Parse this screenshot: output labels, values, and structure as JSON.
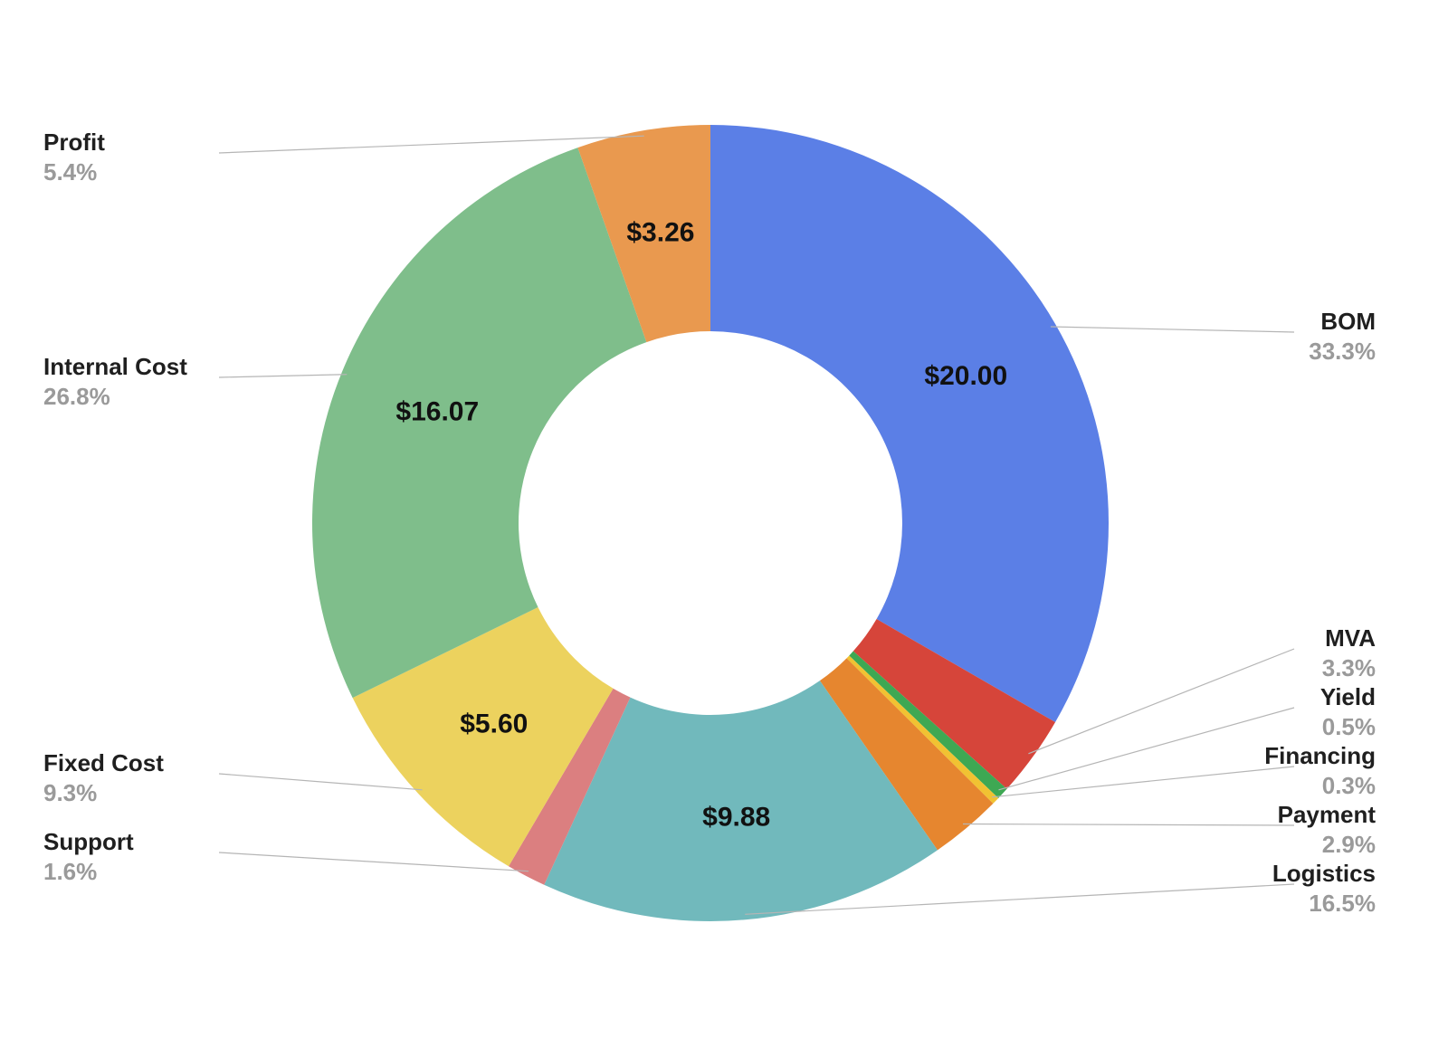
{
  "chart_data": {
    "type": "pie",
    "variant": "donut",
    "title": "",
    "legend_position": "callout-labels",
    "background_color": "#ffffff",
    "label_color": "#1f1f1f",
    "percent_label_color": "#9a9a9a",
    "segments": [
      {
        "label": "BOM",
        "percent": 33.3,
        "percent_label": "33.3%",
        "value_label": "$20.00",
        "color": "#5b7fe6"
      },
      {
        "label": "MVA",
        "percent": 3.3,
        "percent_label": "3.3%",
        "value_label": null,
        "color": "#d6453a"
      },
      {
        "label": "Yield",
        "percent": 0.5,
        "percent_label": "0.5%",
        "value_label": null,
        "color": "#3ea853"
      },
      {
        "label": "Financing",
        "percent": 0.3,
        "percent_label": "0.3%",
        "value_label": null,
        "color": "#f1c232"
      },
      {
        "label": "Payment",
        "percent": 2.9,
        "percent_label": "2.9%",
        "value_label": null,
        "color": "#e6862f"
      },
      {
        "label": "Logistics",
        "percent": 16.5,
        "percent_label": "16.5%",
        "value_label": "$9.88",
        "color": "#71b9bc"
      },
      {
        "label": "Support",
        "percent": 1.6,
        "percent_label": "1.6%",
        "value_label": null,
        "color": "#db7f80"
      },
      {
        "label": "Fixed Cost",
        "percent": 9.3,
        "percent_label": "9.3%",
        "value_label": "$5.60",
        "color": "#ecd25e"
      },
      {
        "label": "Internal Cost",
        "percent": 26.8,
        "percent_label": "26.8%",
        "value_label": "$16.07",
        "color": "#7fbe8b"
      },
      {
        "label": "Profit",
        "percent": 5.4,
        "percent_label": "5.4%",
        "value_label": "$3.26",
        "color": "#e9994f"
      }
    ]
  }
}
